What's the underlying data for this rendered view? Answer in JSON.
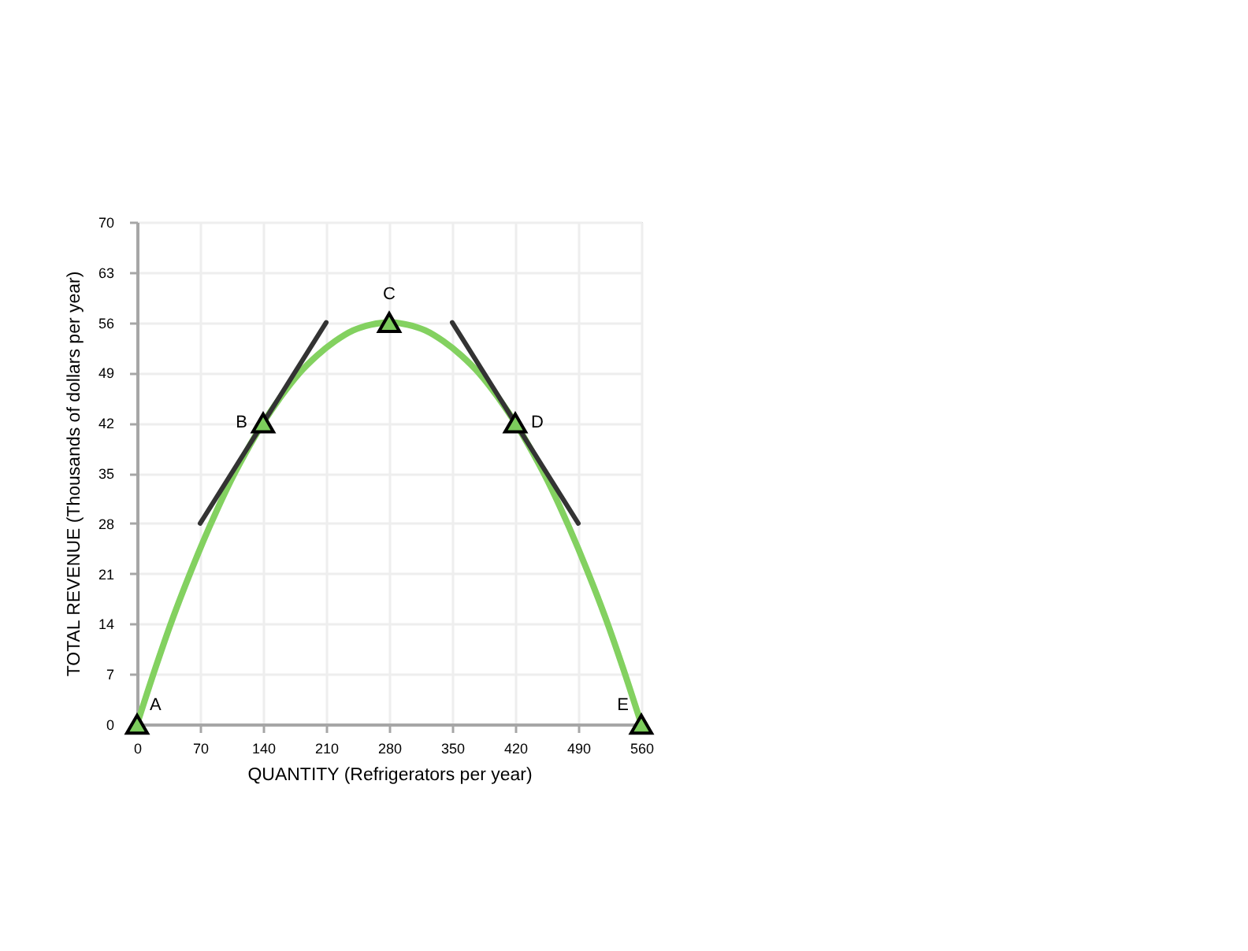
{
  "chart_data": {
    "type": "line",
    "xlabel": "QUANTITY (Refrigerators per year)",
    "ylabel": "TOTAL REVENUE (Thousands of dollars per year)",
    "xlim": [
      0,
      560
    ],
    "xticks": [
      0,
      70,
      140,
      210,
      280,
      350,
      420,
      490,
      560
    ],
    "ylim": [
      0,
      70
    ],
    "yticks": [
      0,
      7,
      14,
      21,
      28,
      35,
      42,
      49,
      56,
      63,
      70
    ],
    "grid": true,
    "line_style": "solid",
    "series": [
      {
        "color": "#83d160",
        "marker": "none",
        "x": [
          0,
          20,
          40,
          60,
          80,
          100,
          120,
          140,
          160,
          180,
          200,
          220,
          240,
          260,
          280,
          300,
          320,
          340,
          360,
          380,
          400,
          420,
          440,
          460,
          480,
          500,
          520,
          540,
          560
        ],
        "values": [
          0,
          7.7,
          14.9,
          21.4,
          27.4,
          32.9,
          37.7,
          42,
          45.7,
          48.9,
          51.4,
          53.4,
          54.9,
          55.7,
          56,
          55.7,
          54.9,
          53.4,
          51.4,
          48.9,
          45.7,
          42,
          37.7,
          32.9,
          27.4,
          21.4,
          14.9,
          7.7,
          0
        ]
      },
      {
        "color": "#333333",
        "marker": "none",
        "x": [
          70,
          210
        ],
        "values": [
          28,
          56
        ]
      },
      {
        "color": "#333333",
        "marker": "none",
        "x": [
          350,
          490
        ],
        "values": [
          56,
          28
        ]
      },
      {
        "type": "scatter",
        "color": "#7ccc5c",
        "marker": "triangle",
        "x": [
          0,
          140,
          280,
          420,
          560
        ],
        "values": [
          0,
          42,
          56,
          42,
          0
        ]
      }
    ],
    "annotations": [
      {
        "text": "A",
        "x": 0,
        "y": 0
      },
      {
        "text": "B",
        "x": 140,
        "y": 42
      },
      {
        "text": "C",
        "x": 280,
        "y": 56
      },
      {
        "text": "D",
        "x": 420,
        "y": 42
      },
      {
        "text": "E",
        "x": 560,
        "y": 0
      }
    ]
  }
}
